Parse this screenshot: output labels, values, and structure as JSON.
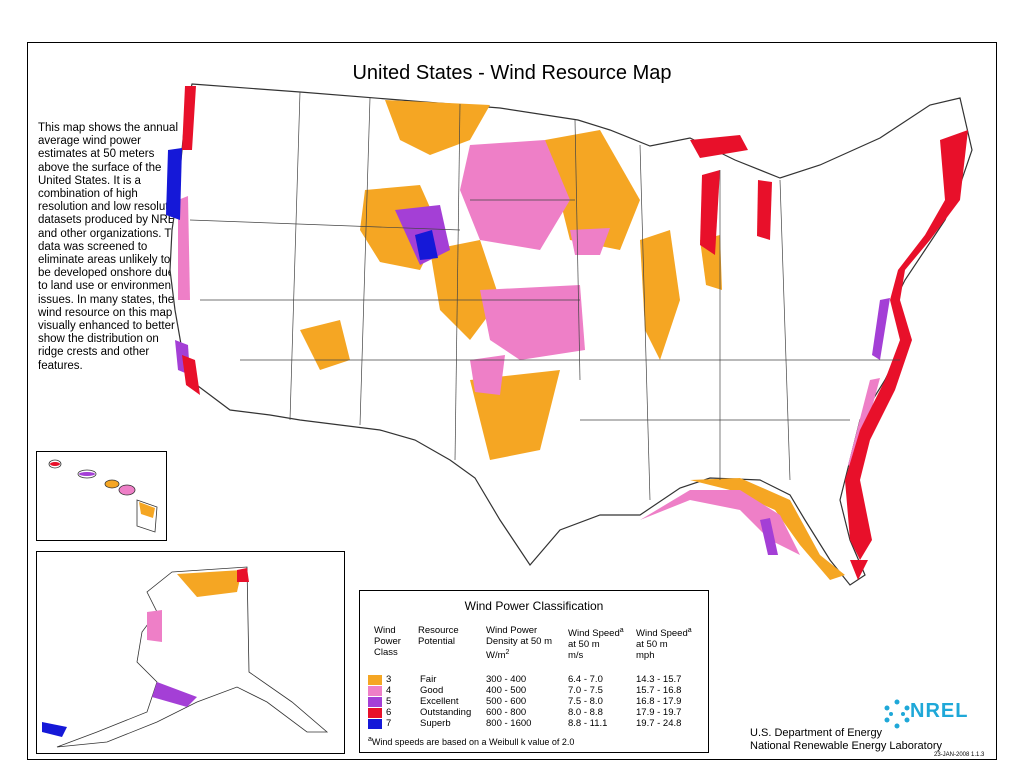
{
  "map": {
    "title": "United States - Wind Resource Map",
    "description": "This map shows the annual average wind power estimates at 50 meters above the surface of the United States.  It is a combination of high resolution and low resolution datasets produced by NREL and other organizations.  The data was screened to eliminate areas unlikely to be developed onshore due to land use or environmental  issues. In many states, the wind resource on this map is visually enhanced to better show the distribution on ridge crests and other features.",
    "colors": {
      "fair": "#f5a623",
      "good": "#ee7fc7",
      "excellent": "#a43fd6",
      "outstanding": "#e8102a",
      "superb": "#1518d8",
      "state_border": "#444444"
    }
  },
  "legend": {
    "title": "Wind Power Classification",
    "headers": {
      "class_l1": "Wind",
      "class_l2": "Power",
      "class_l3": "Class",
      "potential_l1": "Resource",
      "potential_l2": "Potential",
      "density_l1": "Wind Power",
      "density_l2": "Density at 50 m",
      "density_l3": "W/m",
      "density_sup": "2",
      "ms_l1": "Wind Speed",
      "ms_sup": "a",
      "ms_l2": "at 50 m",
      "ms_l3": "m/s",
      "mph_l1": "Wind Speed",
      "mph_sup": "a",
      "mph_l2": "at 50 m",
      "mph_l3": "mph"
    },
    "rows": [
      {
        "cls": "3",
        "potential": "Fair",
        "density": "300 -  400",
        "ms": "6.4 -  7.0",
        "mph": "14.3 - 15.7",
        "color": "#f5a623"
      },
      {
        "cls": "4",
        "potential": "Good",
        "density": "400 -  500",
        "ms": "7.0 -  7.5",
        "mph": "15.7 - 16.8",
        "color": "#ee7fc7"
      },
      {
        "cls": "5",
        "potential": "Excellent",
        "density": "500 -  600",
        "ms": "7.5 -  8.0",
        "mph": "16.8 - 17.9",
        "color": "#a43fd6"
      },
      {
        "cls": "6",
        "potential": "Outstanding",
        "density": "600 -  800",
        "ms": "8.0 -  8.8",
        "mph": "17.9 - 19.7",
        "color": "#e8102a"
      },
      {
        "cls": "7",
        "potential": "Superb",
        "density": "800 - 1600",
        "ms": "8.8 - 11.1",
        "mph": "19.7 - 24.8",
        "color": "#1518d8"
      }
    ],
    "footnote_sup": "a",
    "footnote": "Wind speeds are based on a Weibull k value of 2.0"
  },
  "credits": {
    "line1": "U.S. Department of Energy",
    "line2": "National Renewable Energy Laboratory",
    "logo": "NREL",
    "logo_icon": "nrel-sun-icon",
    "datestamp": "23-JAN-2008 1.1.3"
  }
}
